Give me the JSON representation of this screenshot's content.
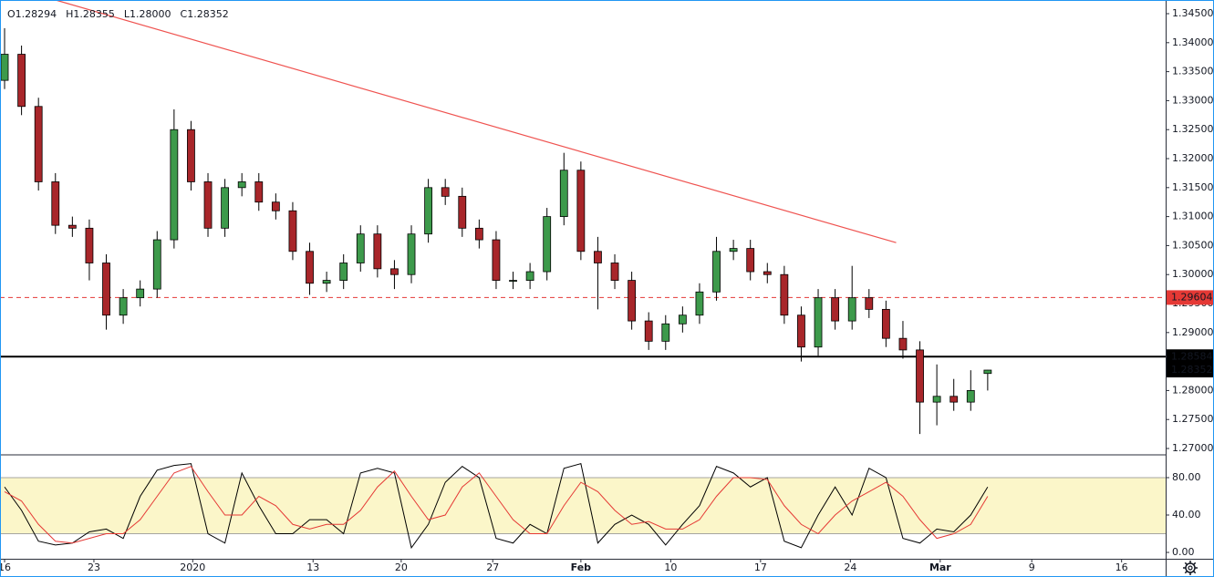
{
  "chart_data": [
    {
      "type": "candlestick",
      "legend": [
        "O1.28294",
        "H1.28355",
        "L1.28000",
        "C1.28352"
      ],
      "x": [
        0,
        1,
        2,
        3,
        4,
        5,
        6,
        7,
        8,
        9,
        10,
        11,
        12,
        13,
        14,
        15,
        16,
        17,
        18,
        19,
        20,
        21,
        22,
        23,
        24,
        25,
        26,
        27,
        28,
        29,
        30,
        31,
        32,
        33,
        34,
        35,
        36,
        37,
        38,
        39,
        40,
        41,
        42,
        43,
        44,
        45,
        46,
        47,
        48,
        49,
        50,
        51,
        52,
        53,
        54,
        55,
        56,
        57,
        58
      ],
      "open": [
        1.3335,
        1.338,
        1.329,
        1.316,
        1.3085,
        1.308,
        1.302,
        1.293,
        1.296,
        1.2975,
        1.306,
        1.325,
        1.316,
        1.308,
        1.315,
        1.316,
        1.3125,
        1.311,
        1.304,
        1.2985,
        1.299,
        1.302,
        1.307,
        1.301,
        1.3,
        1.307,
        1.315,
        1.3135,
        1.308,
        1.306,
        1.299,
        1.299,
        1.3005,
        1.31,
        1.318,
        1.304,
        1.302,
        1.299,
        1.292,
        1.2885,
        1.2915,
        1.293,
        1.297,
        1.304,
        1.3045,
        1.3005,
        1.3,
        1.293,
        1.2875,
        1.296,
        1.292,
        1.296,
        1.294,
        1.289,
        1.287,
        1.278,
        1.279,
        1.278,
        1.28294
      ],
      "high": [
        1.3425,
        1.3395,
        1.3305,
        1.3175,
        1.31,
        1.3095,
        1.3035,
        1.2975,
        1.299,
        1.3075,
        1.3285,
        1.3265,
        1.3175,
        1.3165,
        1.3175,
        1.3175,
        1.314,
        1.3125,
        1.3055,
        1.3005,
        1.3035,
        1.3085,
        1.3085,
        1.3025,
        1.3085,
        1.3165,
        1.3165,
        1.315,
        1.3095,
        1.3075,
        1.3005,
        1.302,
        1.3115,
        1.321,
        1.3195,
        1.3065,
        1.3035,
        1.3005,
        1.2935,
        1.293,
        1.2945,
        1.2985,
        1.3065,
        1.306,
        1.306,
        1.302,
        1.3015,
        1.2945,
        1.2975,
        1.2975,
        1.3015,
        1.2975,
        1.2955,
        1.292,
        1.2885,
        1.2845,
        1.282,
        1.2835,
        1.28355
      ],
      "low": [
        1.332,
        1.3275,
        1.3145,
        1.307,
        1.3065,
        1.299,
        1.2905,
        1.2915,
        1.2945,
        1.296,
        1.3045,
        1.3145,
        1.3065,
        1.3065,
        1.3135,
        1.311,
        1.3095,
        1.3025,
        1.2965,
        1.297,
        1.2975,
        1.3005,
        1.2995,
        1.2975,
        1.2985,
        1.3055,
        1.312,
        1.3065,
        1.3045,
        1.2975,
        1.2975,
        1.2975,
        1.299,
        1.3085,
        1.3025,
        1.294,
        1.2975,
        1.2905,
        1.287,
        1.287,
        1.29,
        1.2915,
        1.2955,
        1.3025,
        1.299,
        1.2985,
        1.2915,
        1.285,
        1.286,
        1.2905,
        1.2905,
        1.2925,
        1.2875,
        1.2855,
        1.2725,
        1.274,
        1.2765,
        1.2765,
        1.28
      ],
      "close": [
        1.338,
        1.329,
        1.316,
        1.3085,
        1.308,
        1.302,
        1.293,
        1.296,
        1.2975,
        1.306,
        1.325,
        1.316,
        1.308,
        1.315,
        1.316,
        1.3125,
        1.311,
        1.304,
        1.2985,
        1.299,
        1.302,
        1.307,
        1.301,
        1.3,
        1.307,
        1.315,
        1.3135,
        1.308,
        1.306,
        1.299,
        1.299,
        1.3005,
        1.31,
        1.318,
        1.304,
        1.302,
        1.299,
        1.292,
        1.2885,
        1.2915,
        1.293,
        1.297,
        1.304,
        1.3045,
        1.3005,
        1.3,
        1.293,
        1.2875,
        1.296,
        1.292,
        1.296,
        1.294,
        1.289,
        1.287,
        1.278,
        1.279,
        1.278,
        1.28,
        1.28352
      ],
      "up_color": "#3d9a4b",
      "down_color": "#a8262a",
      "xlim": [
        -0.27,
        68.5
      ],
      "xticks": [
        {
          "value": 0,
          "label": "16"
        },
        {
          "value": 5.27,
          "label": "23"
        },
        {
          "value": 11.1,
          "label": "2020"
        },
        {
          "value": 18.2,
          "label": "13"
        },
        {
          "value": 23.4,
          "label": "20"
        },
        {
          "value": 28.8,
          "label": "27"
        },
        {
          "value": 34.0,
          "label": "Feb"
        },
        {
          "value": 39.3,
          "label": "10"
        },
        {
          "value": 44.6,
          "label": "17"
        },
        {
          "value": 49.9,
          "label": "24"
        },
        {
          "value": 55.2,
          "label": "Mar"
        },
        {
          "value": 60.6,
          "label": "9"
        },
        {
          "value": 65.9,
          "label": "16"
        }
      ],
      "ylim": [
        1.26906,
        1.34736
      ],
      "yticks": [
        {
          "value": 1.345,
          "label": "1.34500"
        },
        {
          "value": 1.34,
          "label": "1.34000"
        },
        {
          "value": 1.335,
          "label": "1.33500"
        },
        {
          "value": 1.33,
          "label": "1.33000"
        },
        {
          "value": 1.325,
          "label": "1.32500"
        },
        {
          "value": 1.32,
          "label": "1.32000"
        },
        {
          "value": 1.315,
          "label": "1.31500"
        },
        {
          "value": 1.31,
          "label": "1.31000"
        },
        {
          "value": 1.305,
          "label": "1.30500"
        },
        {
          "value": 1.3,
          "label": "1.30000"
        },
        {
          "value": 1.295,
          "label": "1.29500"
        },
        {
          "value": 1.29,
          "label": "1.29000"
        },
        {
          "value": 1.285,
          "label": "1.28500"
        },
        {
          "value": 1.28,
          "label": "1.28000"
        },
        {
          "value": 1.275,
          "label": "1.27500"
        },
        {
          "value": 1.27,
          "label": "1.27000"
        }
      ],
      "trendline": {
        "x": [
          2.96,
          52.6
        ],
        "values": [
          1.3474,
          1.3055
        ],
        "color": "#ef5350"
      },
      "levels": [
        {
          "value": 1.29604,
          "label": "1.29604",
          "color": "#e53935",
          "style": "dashed"
        },
        {
          "value": 1.28584,
          "label": "1.28584",
          "color": "#000000",
          "style": "solid"
        }
      ],
      "last_price": {
        "value": 1.28352,
        "label": "1.28352",
        "color": "#000000"
      }
    },
    {
      "type": "line",
      "ylim": [
        -6.8,
        103.4
      ],
      "yticks": [
        {
          "value": 80,
          "label": "80.00"
        },
        {
          "value": 40,
          "label": "40.00"
        },
        {
          "value": 0,
          "label": "0.00"
        }
      ],
      "band": [
        20,
        80
      ],
      "band_color": "#fbf6c9",
      "series": [
        {
          "color": "#000000",
          "values": [
            70,
            45,
            12,
            8,
            10,
            22,
            25,
            15,
            60,
            88,
            93,
            95,
            20,
            10,
            85,
            50,
            20,
            20,
            35,
            35,
            20,
            85,
            90,
            85,
            5,
            30,
            75,
            92,
            80,
            15,
            10,
            30,
            20,
            90,
            95,
            10,
            30,
            40,
            30,
            8,
            30,
            50,
            92,
            85,
            70,
            80,
            12,
            5,
            40,
            70,
            40,
            90,
            80,
            15,
            10,
            25,
            22,
            40,
            70
          ]
        },
        {
          "color": "#e53935",
          "values": [
            65,
            55,
            30,
            12,
            10,
            15,
            20,
            20,
            35,
            60,
            85,
            92,
            65,
            40,
            40,
            60,
            50,
            30,
            25,
            30,
            30,
            45,
            70,
            87,
            60,
            35,
            40,
            70,
            85,
            60,
            35,
            20,
            20,
            50,
            75,
            65,
            45,
            30,
            33,
            25,
            25,
            35,
            60,
            80,
            80,
            78,
            50,
            30,
            20,
            40,
            55,
            65,
            75,
            60,
            35,
            15,
            20,
            30,
            60
          ]
        }
      ]
    }
  ]
}
